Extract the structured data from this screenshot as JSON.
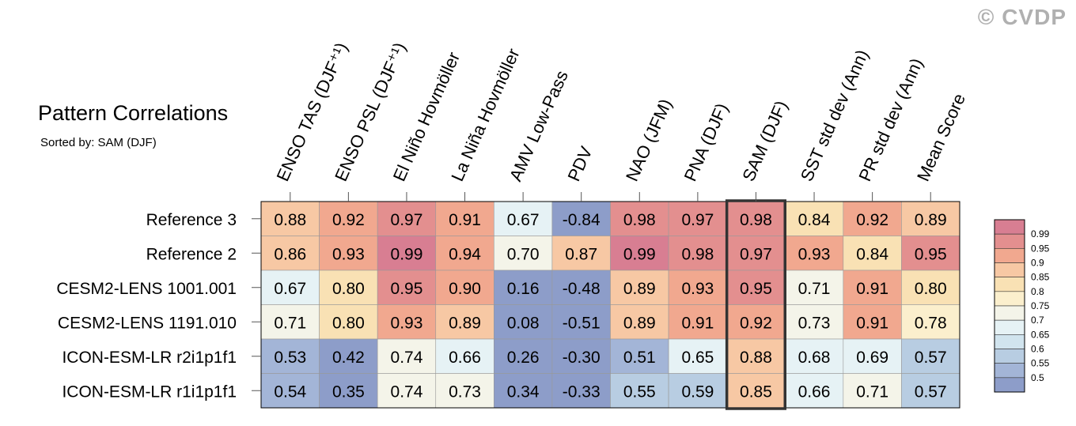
{
  "watermark": "© CVDP",
  "title": "Pattern Correlations",
  "subtitle": "Sorted by: SAM (DJF)",
  "highlight_column": 8,
  "colors": {
    "highlight_border": "#333333",
    "grid": "#999999"
  },
  "chart_data": {
    "type": "heatmap",
    "title": "Pattern Correlations",
    "subtitle": "Sorted by: SAM (DJF)",
    "columns": [
      "ENSO TAS (DJF⁺¹)",
      "ENSO PSL (DJF⁺¹)",
      "El Niño Hovmöller",
      "La Niña Hovmöller",
      "AMV Low-Pass",
      "PDV",
      "NAO (JFM)",
      "PNA (DJF)",
      "SAM (DJF)",
      "SST std dev (Ann)",
      "PR std dev (Ann)",
      "Mean Score"
    ],
    "rows": [
      "Reference 3",
      "Reference 2",
      "CESM2-LENS 1001.001",
      "CESM2-LENS 1191.010",
      "ICON-ESM-LR r2i1p1f1",
      "ICON-ESM-LR r1i1p1f1"
    ],
    "values": [
      [
        "0.88",
        "0.92",
        "0.97",
        "0.91",
        "0.67",
        "-0.84",
        "0.98",
        "0.97",
        "0.98",
        "0.84",
        "0.92",
        "0.89"
      ],
      [
        "0.86",
        "0.93",
        "0.99",
        "0.94",
        "0.70",
        "0.87",
        "0.99",
        "0.98",
        "0.97",
        "0.93",
        "0.84",
        "0.95"
      ],
      [
        "0.67",
        "0.80",
        "0.95",
        "0.90",
        "0.16",
        "-0.48",
        "0.89",
        "0.93",
        "0.95",
        "0.71",
        "0.91",
        "0.80"
      ],
      [
        "0.71",
        "0.80",
        "0.93",
        "0.89",
        "0.08",
        "-0.51",
        "0.89",
        "0.91",
        "0.92",
        "0.73",
        "0.91",
        "0.78"
      ],
      [
        "0.53",
        "0.42",
        "0.74",
        "0.66",
        "0.26",
        "-0.30",
        "0.51",
        "0.65",
        "0.88",
        "0.68",
        "0.69",
        "0.57"
      ],
      [
        "0.54",
        "0.35",
        "0.74",
        "0.73",
        "0.34",
        "-0.33",
        "0.55",
        "0.59",
        "0.85",
        "0.66",
        "0.71",
        "0.57"
      ]
    ],
    "colorbar": {
      "labels": [
        "0.99",
        "0.95",
        "0.9",
        "0.85",
        "0.8",
        "0.75",
        "0.7",
        "0.65",
        "0.6",
        "0.55",
        "0.5"
      ],
      "bounds": [
        0.5,
        0.55,
        0.6,
        0.65,
        0.7,
        0.75,
        0.8,
        0.85,
        0.9,
        0.95,
        0.99
      ],
      "colors": [
        "#8d9dc9",
        "#a3b5d7",
        "#b8cde2",
        "#d1e4ee",
        "#e6f2f5",
        "#f4f4e9",
        "#fbefcd",
        "#f9e1b4",
        "#f7c8a4",
        "#f1a88f",
        "#e38f8f",
        "#d87e92"
      ]
    }
  }
}
